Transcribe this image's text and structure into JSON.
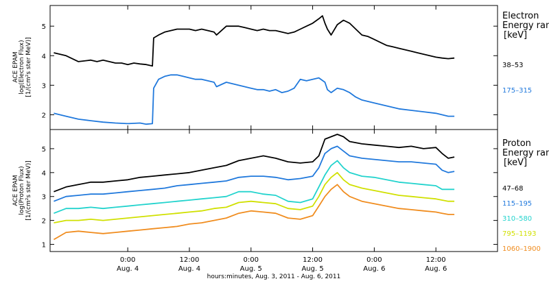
{
  "chart_data": [
    {
      "type": "line",
      "instrument": "ACE EPAM",
      "ylabel_line2": "log(Electron Flux)",
      "ylabel_line3": "[1/(cm²s ster MeV)]",
      "legend_title_1": "Electron",
      "legend_title_2": "Energy range",
      "legend_unit": "[keV]",
      "ylim": [
        1.5,
        5.7
      ],
      "yticks": [
        "2",
        "3",
        "4",
        "5"
      ],
      "ytick_values": [
        2,
        3,
        4,
        5
      ],
      "series": [
        {
          "name": "38–53",
          "color": "#000000",
          "x": [
            -0.6,
            -0.5,
            -0.4,
            -0.3,
            -0.25,
            -0.2,
            -0.15,
            -0.1,
            -0.05,
            0.0,
            0.05,
            0.1,
            0.15,
            0.2,
            0.21,
            0.25,
            0.3,
            0.35,
            0.4,
            0.45,
            0.5,
            0.55,
            0.6,
            0.65,
            0.7,
            0.72,
            0.8,
            0.9,
            0.95,
            1.0,
            1.05,
            1.1,
            1.15,
            1.2,
            1.25,
            1.3,
            1.35,
            1.4,
            1.45,
            1.5,
            1.55,
            1.58,
            1.6,
            1.62,
            1.65,
            1.7,
            1.75,
            1.8,
            1.85,
            1.9,
            1.95,
            2.0,
            2.05,
            2.1,
            2.15,
            2.2,
            2.25,
            2.3,
            2.35,
            2.4,
            2.45,
            2.5,
            2.55,
            2.6,
            2.65
          ],
          "values": [
            4.1,
            4.0,
            3.8,
            3.85,
            3.8,
            3.85,
            3.8,
            3.75,
            3.75,
            3.7,
            3.75,
            3.72,
            3.7,
            3.65,
            4.6,
            4.7,
            4.8,
            4.85,
            4.9,
            4.9,
            4.9,
            4.85,
            4.9,
            4.85,
            4.8,
            4.7,
            5.0,
            5.0,
            4.95,
            4.9,
            4.85,
            4.9,
            4.85,
            4.85,
            4.8,
            4.75,
            4.8,
            4.9,
            5.0,
            5.1,
            5.25,
            5.35,
            5.1,
            4.9,
            4.7,
            5.05,
            5.2,
            5.1,
            4.9,
            4.7,
            4.65,
            4.55,
            4.45,
            4.35,
            4.3,
            4.25,
            4.2,
            4.15,
            4.1,
            4.05,
            4.0,
            3.95,
            3.92,
            3.9,
            3.92
          ]
        },
        {
          "name": "175–315",
          "color": "#1f78dc",
          "x": [
            -0.6,
            -0.5,
            -0.4,
            -0.3,
            -0.2,
            -0.1,
            0.0,
            0.1,
            0.15,
            0.2,
            0.21,
            0.25,
            0.3,
            0.35,
            0.4,
            0.45,
            0.5,
            0.55,
            0.6,
            0.65,
            0.7,
            0.72,
            0.8,
            0.9,
            1.0,
            1.05,
            1.1,
            1.15,
            1.2,
            1.25,
            1.3,
            1.35,
            1.4,
            1.45,
            1.5,
            1.55,
            1.6,
            1.62,
            1.65,
            1.7,
            1.75,
            1.8,
            1.85,
            1.9,
            2.0,
            2.1,
            2.2,
            2.3,
            2.4,
            2.5,
            2.6,
            2.65
          ],
          "values": [
            2.05,
            1.95,
            1.85,
            1.8,
            1.75,
            1.72,
            1.7,
            1.72,
            1.68,
            1.7,
            2.9,
            3.2,
            3.3,
            3.35,
            3.35,
            3.3,
            3.25,
            3.2,
            3.2,
            3.15,
            3.1,
            2.95,
            3.1,
            3.0,
            2.9,
            2.85,
            2.85,
            2.8,
            2.85,
            2.75,
            2.8,
            2.9,
            3.2,
            3.15,
            3.2,
            3.25,
            3.1,
            2.85,
            2.75,
            2.9,
            2.85,
            2.75,
            2.6,
            2.5,
            2.4,
            2.3,
            2.2,
            2.15,
            2.1,
            2.05,
            1.95,
            1.95
          ]
        }
      ]
    },
    {
      "type": "line",
      "instrument": "ACE EPAM",
      "ylabel_line2": "log(Proton Flux)",
      "ylabel_line3": "[1/(cm²s ster MeV)]",
      "legend_title_1": "Proton",
      "legend_title_2": "Energy range",
      "legend_unit": "[keV]",
      "ylim": [
        0.7,
        5.8
      ],
      "yticks": [
        "1",
        "2",
        "3",
        "4",
        "5"
      ],
      "ytick_values": [
        1,
        2,
        3,
        4,
        5
      ],
      "xlabel": "hours:minutes, Aug.  3, 2011 - Aug.  6, 2011",
      "xlim": [
        -0.63,
        3.0
      ],
      "xtick_values": [
        0,
        0.5,
        1,
        1.5,
        2,
        2.5
      ],
      "xtick_labels_1": [
        "0:00",
        "12:00",
        "0:00",
        "12:00",
        "0:00",
        "12:00"
      ],
      "xtick_labels_2": [
        "Aug. 4",
        "Aug. 4",
        "Aug. 5",
        "Aug. 5",
        "Aug. 6",
        "Aug. 6"
      ],
      "series": [
        {
          "name": "47–68",
          "color": "#000000",
          "x": [
            -0.6,
            -0.5,
            -0.4,
            -0.3,
            -0.2,
            -0.1,
            0.0,
            0.1,
            0.2,
            0.3,
            0.4,
            0.5,
            0.6,
            0.7,
            0.8,
            0.9,
            1.0,
            1.1,
            1.2,
            1.3,
            1.4,
            1.5,
            1.55,
            1.6,
            1.65,
            1.7,
            1.75,
            1.8,
            1.9,
            2.0,
            2.1,
            2.2,
            2.3,
            2.4,
            2.5,
            2.55,
            2.6,
            2.65
          ],
          "values": [
            3.2,
            3.4,
            3.5,
            3.6,
            3.6,
            3.65,
            3.7,
            3.8,
            3.85,
            3.9,
            3.95,
            4.0,
            4.1,
            4.2,
            4.3,
            4.5,
            4.6,
            4.7,
            4.6,
            4.45,
            4.4,
            4.45,
            4.7,
            5.4,
            5.5,
            5.6,
            5.5,
            5.3,
            5.2,
            5.15,
            5.1,
            5.05,
            5.1,
            5.0,
            5.05,
            4.8,
            4.6,
            4.65
          ]
        },
        {
          "name": "115–195",
          "color": "#1f78dc",
          "x": [
            -0.6,
            -0.5,
            -0.4,
            -0.3,
            -0.2,
            -0.1,
            0.0,
            0.1,
            0.2,
            0.3,
            0.4,
            0.5,
            0.6,
            0.7,
            0.8,
            0.9,
            1.0,
            1.1,
            1.2,
            1.3,
            1.4,
            1.5,
            1.55,
            1.6,
            1.65,
            1.7,
            1.75,
            1.8,
            1.9,
            2.0,
            2.1,
            2.2,
            2.3,
            2.4,
            2.5,
            2.55,
            2.6,
            2.65
          ],
          "values": [
            2.8,
            3.0,
            3.05,
            3.1,
            3.1,
            3.15,
            3.2,
            3.25,
            3.3,
            3.35,
            3.45,
            3.5,
            3.55,
            3.6,
            3.65,
            3.8,
            3.85,
            3.85,
            3.8,
            3.7,
            3.75,
            3.85,
            4.2,
            4.8,
            5.0,
            5.1,
            4.9,
            4.7,
            4.6,
            4.55,
            4.5,
            4.45,
            4.45,
            4.4,
            4.35,
            4.1,
            4.0,
            4.05
          ]
        },
        {
          "name": "310–580",
          "color": "#22d3cd",
          "x": [
            -0.6,
            -0.5,
            -0.4,
            -0.3,
            -0.2,
            -0.1,
            0.0,
            0.1,
            0.2,
            0.3,
            0.4,
            0.5,
            0.6,
            0.7,
            0.8,
            0.9,
            1.0,
            1.1,
            1.2,
            1.3,
            1.4,
            1.5,
            1.55,
            1.6,
            1.65,
            1.7,
            1.75,
            1.8,
            1.9,
            2.0,
            2.1,
            2.2,
            2.3,
            2.4,
            2.5,
            2.55,
            2.6,
            2.65
          ],
          "values": [
            2.3,
            2.5,
            2.5,
            2.55,
            2.5,
            2.55,
            2.6,
            2.65,
            2.7,
            2.75,
            2.8,
            2.85,
            2.9,
            2.95,
            3.0,
            3.2,
            3.2,
            3.1,
            3.05,
            2.8,
            2.75,
            2.9,
            3.4,
            3.9,
            4.3,
            4.5,
            4.2,
            4.0,
            3.85,
            3.8,
            3.7,
            3.6,
            3.55,
            3.5,
            3.45,
            3.3,
            3.3,
            3.3
          ]
        },
        {
          "name": "795–1193",
          "color": "#d0e000",
          "x": [
            -0.6,
            -0.5,
            -0.4,
            -0.3,
            -0.2,
            -0.1,
            0.0,
            0.1,
            0.2,
            0.3,
            0.4,
            0.5,
            0.6,
            0.7,
            0.8,
            0.9,
            1.0,
            1.1,
            1.2,
            1.3,
            1.4,
            1.5,
            1.55,
            1.6,
            1.65,
            1.7,
            1.75,
            1.8,
            1.9,
            2.0,
            2.1,
            2.2,
            2.3,
            2.4,
            2.5,
            2.55,
            2.6,
            2.65
          ],
          "values": [
            1.9,
            2.0,
            2.0,
            2.05,
            2.0,
            2.05,
            2.1,
            2.15,
            2.2,
            2.25,
            2.3,
            2.35,
            2.4,
            2.5,
            2.55,
            2.75,
            2.8,
            2.75,
            2.7,
            2.5,
            2.45,
            2.6,
            3.0,
            3.5,
            3.8,
            4.0,
            3.7,
            3.5,
            3.35,
            3.25,
            3.15,
            3.05,
            3.0,
            2.95,
            2.9,
            2.85,
            2.8,
            2.8
          ]
        },
        {
          "name": "1060–1900",
          "color": "#f08c1e",
          "x": [
            -0.6,
            -0.5,
            -0.4,
            -0.3,
            -0.2,
            -0.1,
            0.0,
            0.1,
            0.2,
            0.3,
            0.4,
            0.5,
            0.6,
            0.7,
            0.8,
            0.9,
            1.0,
            1.1,
            1.2,
            1.3,
            1.4,
            1.5,
            1.55,
            1.6,
            1.65,
            1.7,
            1.75,
            1.8,
            1.9,
            2.0,
            2.1,
            2.2,
            2.3,
            2.4,
            2.5,
            2.55,
            2.6,
            2.65
          ],
          "values": [
            1.2,
            1.5,
            1.55,
            1.5,
            1.45,
            1.5,
            1.55,
            1.6,
            1.65,
            1.7,
            1.75,
            1.85,
            1.9,
            2.0,
            2.1,
            2.3,
            2.4,
            2.35,
            2.3,
            2.1,
            2.05,
            2.2,
            2.6,
            3.0,
            3.3,
            3.5,
            3.2,
            3.0,
            2.8,
            2.7,
            2.6,
            2.5,
            2.45,
            2.4,
            2.35,
            2.3,
            2.25,
            2.25
          ]
        }
      ]
    }
  ]
}
